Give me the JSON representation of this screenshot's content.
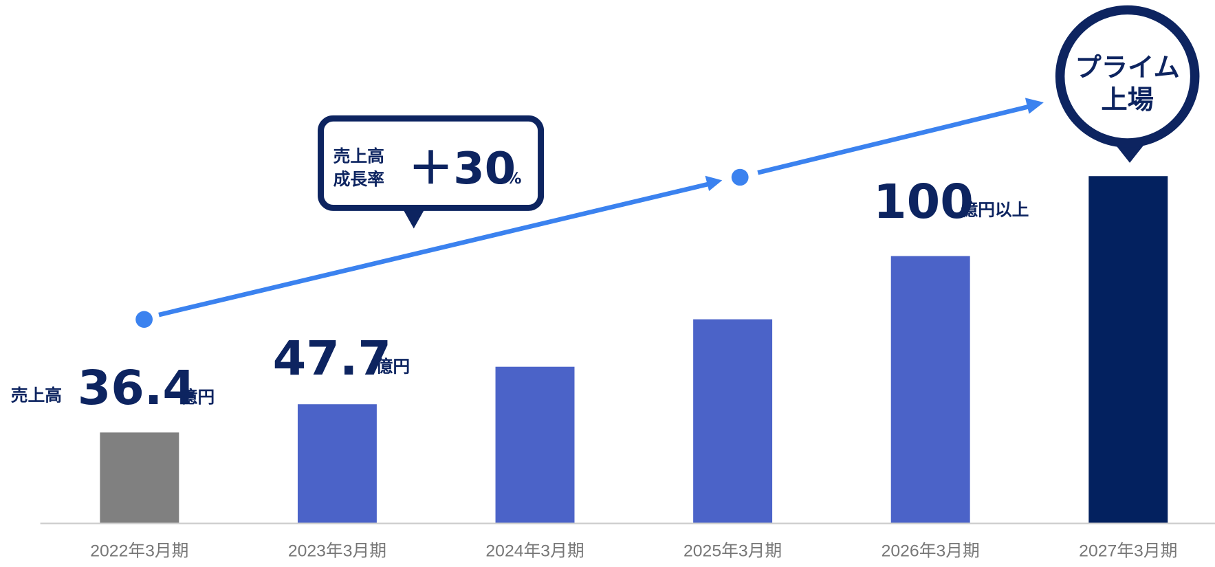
{
  "chart_data": {
    "type": "bar",
    "categories": [
      "2022年3月期",
      "2023年3月期",
      "2024年3月期",
      "2025年3月期",
      "2026年3月期",
      "2027年3月期"
    ],
    "values": [
      36.4,
      47.7,
      62.7,
      81.7,
      107,
      139
    ],
    "colors": [
      "#808080",
      "#4b63c8",
      "#4b63c8",
      "#4b63c8",
      "#4b63c8",
      "#03215f"
    ],
    "ylim": [
      0,
      200
    ],
    "annotations": {
      "first_prefix": "売上高",
      "unit": "億円",
      "target": "100",
      "target_unit": "億円以上",
      "growth_label": [
        "売上高",
        "成長率"
      ],
      "growth_value": "＋30",
      "growth_unit": "%",
      "badge": [
        "プライム",
        "上場"
      ]
    }
  }
}
